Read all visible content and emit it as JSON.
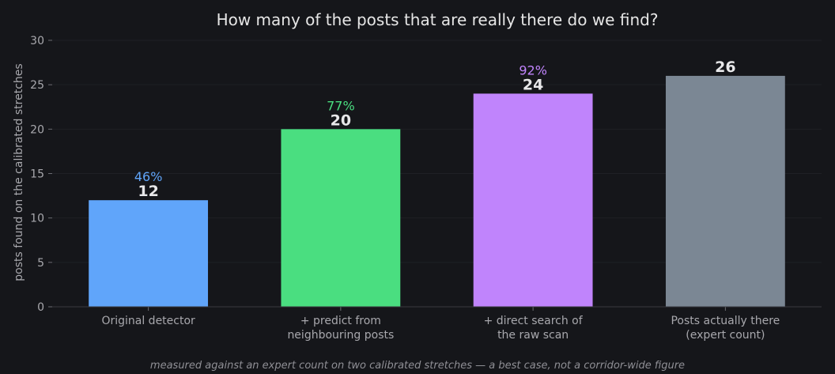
{
  "chart_data": {
    "type": "bar",
    "title": "How many of the posts that are really there do we find?",
    "ylabel": "posts found on the calibrated stretches",
    "xlabel": "",
    "ylim": [
      0,
      30
    ],
    "yticks": [
      0,
      5,
      10,
      15,
      20,
      25,
      30
    ],
    "grid": true,
    "categories": [
      [
        "Original detector"
      ],
      [
        "+ predict from",
        "neighbouring posts"
      ],
      [
        "+ direct search of",
        "the raw scan"
      ],
      [
        "Posts actually there",
        "(expert count)"
      ]
    ],
    "values": [
      12,
      20,
      24,
      26
    ],
    "percent_labels": [
      "46%",
      "77%",
      "92%",
      ""
    ],
    "colors": [
      "#60a5fa",
      "#4ade80",
      "#c084fc",
      "#7b8794"
    ],
    "footnote": "measured against an expert count on two calibrated stretches — a best case, not a corridor-wide figure"
  }
}
